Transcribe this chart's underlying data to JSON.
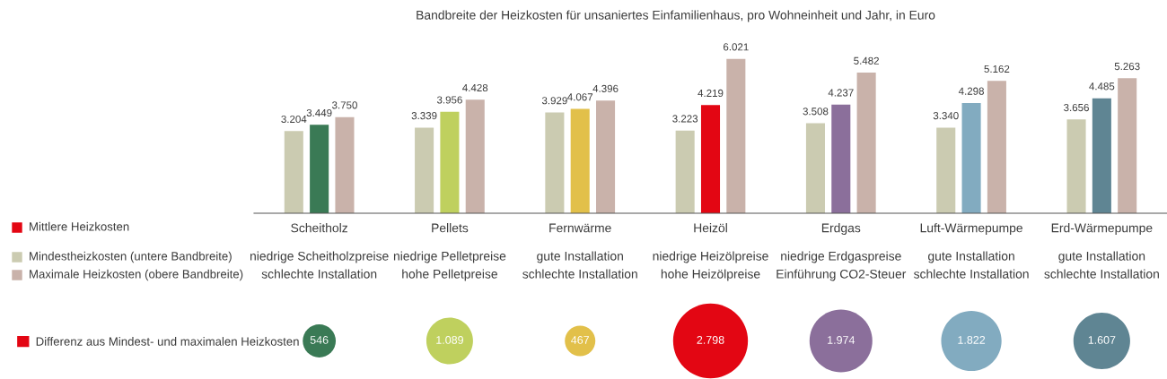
{
  "chart_data": [
    {
      "type": "bar",
      "title": "Bandbreite der Heizkosten für unsaniertes Einfamilienhaus, pro Wohneinheit und Jahr, in Euro",
      "categories": [
        "Scheitholz",
        "Pellets",
        "Fernwärme",
        "Heizöl",
        "Erdgas",
        "Luft-Wärmepumpe",
        "Erd-Wärmepumpe"
      ],
      "series": [
        {
          "name": "Mindestheizkosten (untere Bandbreite)",
          "color": "#cbcbb1",
          "values": [
            3204,
            3339,
            3929,
            3223,
            3508,
            3340,
            3656
          ],
          "value_labels": [
            "3.204",
            "3.339",
            "3.929",
            "3.223",
            "3.508",
            "3.340",
            "3.656"
          ]
        },
        {
          "name": "Mittlere Heizkosten",
          "color": "#e30613",
          "colors": [
            "#3a7a55",
            "#bfd05e",
            "#e2c04a",
            "#e30613",
            "#8b6f9b",
            "#82abc0",
            "#5f8593"
          ],
          "values": [
            3449,
            3956,
            4067,
            4219,
            4237,
            4298,
            4485
          ],
          "value_labels": [
            "3.449",
            "3.956",
            "4.067",
            "4.219",
            "4.237",
            "4.298",
            "4.485"
          ]
        },
        {
          "name": "Maximale Heizkosten (obere Bandbreite)",
          "color": "#c9b2aa",
          "values": [
            3750,
            4428,
            4396,
            6021,
            5482,
            5162,
            5263
          ],
          "value_labels": [
            "3.750",
            "4.428",
            "4.396",
            "6.021",
            "5.482",
            "5.162",
            "5.263"
          ]
        }
      ],
      "annotations": [
        "niedrige Scheitholzpreise\nschlechte Installation",
        "niedrige Pelletpreise\nhohe Pelletpreise",
        "gute Installation\nschlechte Installation",
        "niedrige Heizölpreise\nhohe Heizölpreise",
        "niedrige Erdgaspreise\nEinführung CO2-Steuer",
        "gute Installation\nschlechte Installation",
        "gute Installation\nschlechte Installation"
      ],
      "legend": "left",
      "grid": false,
      "tick_labels": "x"
    },
    {
      "type": "other",
      "categories": [
        null,
        null,
        null,
        null,
        null,
        null,
        null
      ],
      "series": [
        {
          "name": "Differenz aus Mindest- und maximalen Heizkosten",
          "color": "#e30613",
          "colors": [
            "#3a7a55",
            "#bfd05e",
            "#e2c04a",
            "#e30613",
            "#8b6f9b",
            "#82abc0",
            "#5f8593"
          ],
          "values": [
            546,
            1089,
            467,
            2798,
            1974,
            1822,
            1607
          ],
          "value_labels": [
            "546",
            "1.089",
            "467",
            "2.798",
            "1.974",
            "1.822",
            "1.607"
          ]
        }
      ],
      "legend": "left"
    }
  ]
}
